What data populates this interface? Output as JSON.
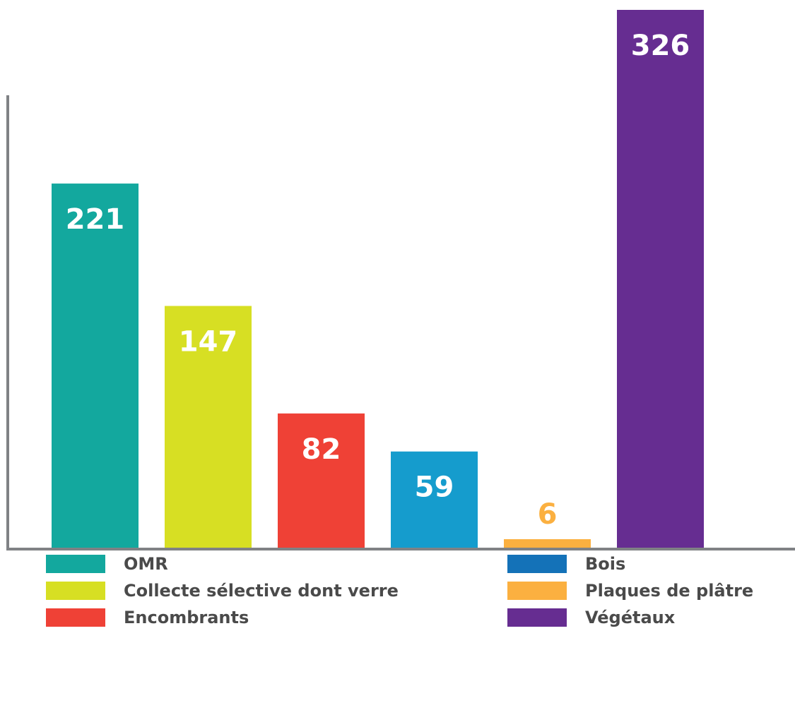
{
  "chart_data": {
    "type": "bar",
    "categories": [
      "OMR",
      "Collecte sélective dont verre",
      "Encombrants",
      "Bois",
      "Plaques de plâtre",
      "Végétaux"
    ],
    "values": [
      221,
      147,
      82,
      59,
      6,
      326
    ],
    "bar_colors": [
      "#13a89e",
      "#d7df23",
      "#ef4136",
      "#159ccd",
      "#fbb040",
      "#662d91"
    ],
    "value_label_colors": [
      "#ffffff",
      "#ffffff",
      "#ffffff",
      "#ffffff",
      "#fbb040",
      "#ffffff"
    ],
    "legend_colors": [
      "#13a89e",
      "#d7df23",
      "#ef4136",
      "#1472b8",
      "#fbb040",
      "#662d91"
    ],
    "legend_position": "bottom",
    "grid": false,
    "ylim": [
      0,
      326
    ],
    "axis_color": "#808285"
  }
}
